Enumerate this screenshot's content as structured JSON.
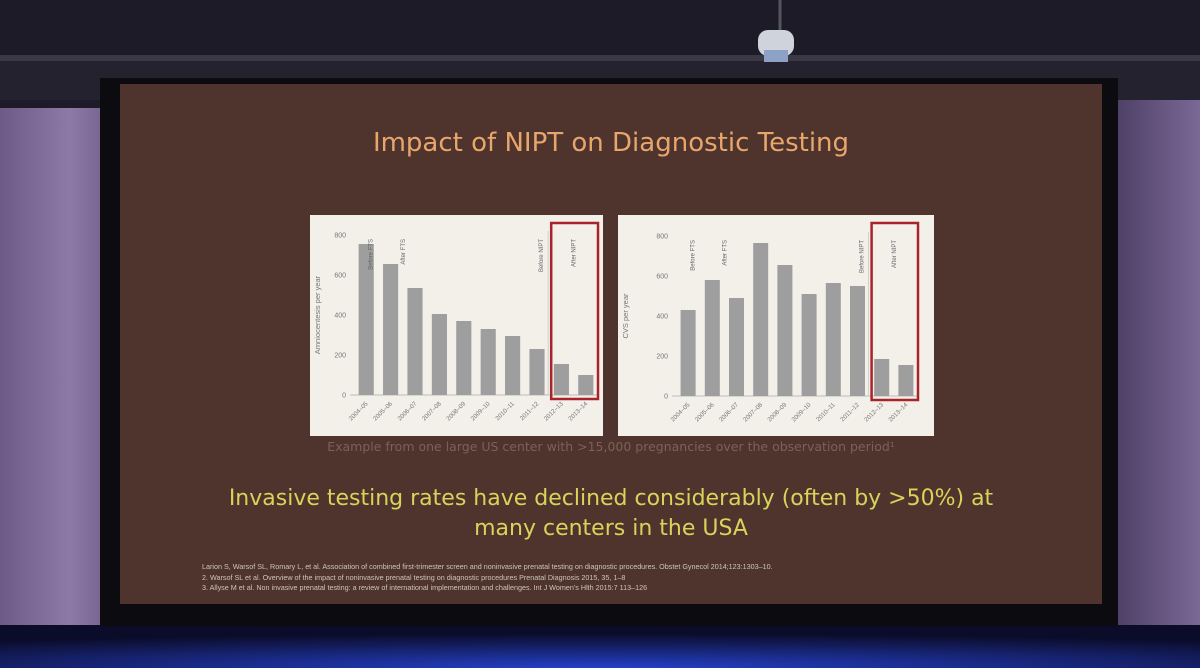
{
  "slide": {
    "title": "Impact of NIPT on Diagnostic Testing",
    "caption": "Example from one large US center with >15,000 pregnancies over the observation period¹",
    "takeaway_line1": "Invasive testing rates have declined considerably (often by >50%) at",
    "takeaway_line2": "many centers in the USA",
    "references": [
      "Larion S, Warsof SL, Romary L, et al. Association of combined first-trimester screen and noninvasive prenatal testing on diagnostic procedures. Obstet Gynecol 2014;123:1303–10.",
      "2. Warsof SL et al. Overview of the impact of noninvasive prenatal testing on diagnostic procedures Prenatal Diagnosis 2015, 35, 1–8",
      "3. Allyse M et al. Non invasive prenatal testing: a review of international implementation and challenges. Int J Women’s Hlth 2015:7 113–126"
    ]
  },
  "colors": {
    "slide_bg": "#4e342d",
    "title": "#e8a66c",
    "takeaway": "#d8d35a",
    "bars": "#9e9e9e",
    "highlight_box": "#a8232a"
  },
  "chart_data": [
    {
      "type": "bar",
      "ylabel": "Amniocentesis per year",
      "ylim": [
        0,
        800
      ],
      "yticks": [
        0,
        200,
        400,
        600,
        800
      ],
      "categories": [
        "2004–05",
        "2005–06",
        "2006–07",
        "2007–08",
        "2008–09",
        "2009–10",
        "2010–11",
        "2011–12",
        "2012–13",
        "2013–14"
      ],
      "values": [
        755,
        655,
        535,
        405,
        370,
        330,
        295,
        230,
        155,
        100
      ],
      "annotations": [
        {
          "label": "Before FTS",
          "after_category": 0
        },
        {
          "label": "After FTS",
          "after_category": 1
        },
        {
          "label": "Before NIPT",
          "after_category": 7
        },
        {
          "label": "After NIPT",
          "after_category": 8
        }
      ],
      "highlight_categories": [
        "2012–13",
        "2013–14"
      ]
    },
    {
      "type": "bar",
      "ylabel": "CVS per year",
      "ylim": [
        0,
        800
      ],
      "yticks": [
        0,
        200,
        400,
        600,
        800
      ],
      "categories": [
        "2004–05",
        "2005–06",
        "2006–07",
        "2007–08",
        "2008–09",
        "2009–10",
        "2010–11",
        "2011–12",
        "2012–13",
        "2013–14"
      ],
      "values": [
        430,
        580,
        490,
        765,
        655,
        510,
        565,
        550,
        185,
        155
      ],
      "annotations": [
        {
          "label": "Before FTS",
          "after_category": 0
        },
        {
          "label": "After FTS",
          "after_category": 1
        },
        {
          "label": "Before NIPT",
          "after_category": 7
        },
        {
          "label": "After NIPT",
          "after_category": 8
        }
      ],
      "highlight_categories": [
        "2012–13",
        "2013–14"
      ]
    }
  ]
}
